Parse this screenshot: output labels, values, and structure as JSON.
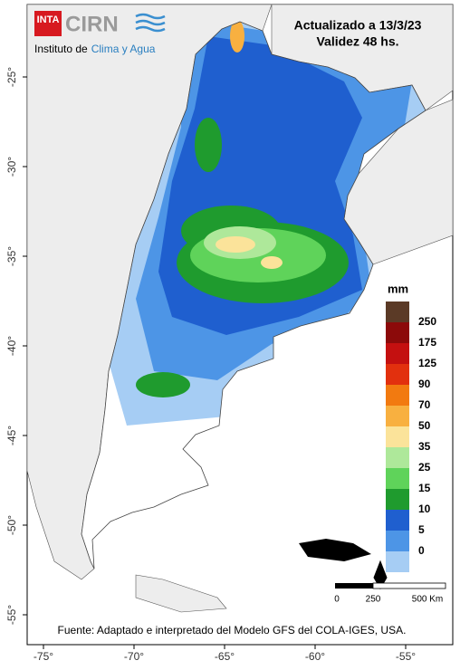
{
  "logo": {
    "badge": "INTA",
    "name": "CIRN",
    "subtitle_plain": "Instituto de",
    "subtitle_colored": "Clima y Agua"
  },
  "header": {
    "updated": "Actualizado a 13/3/23",
    "validity": "Validez 48 hs."
  },
  "legend": {
    "title": "mm",
    "labels": [
      250,
      175,
      125,
      90,
      70,
      50,
      35,
      25,
      15,
      10,
      5,
      0
    ],
    "colors": [
      "#5b3a26",
      "#8c0a0a",
      "#c41010",
      "#e2300e",
      "#f27a10",
      "#f8b040",
      "#fbe39a",
      "#aee89a",
      "#5fd35a",
      "#1f9b2e",
      "#1f5fcf",
      "#4d95e6",
      "#a6cdf4"
    ]
  },
  "scale_bar": {
    "labels": [
      "0",
      "250",
      "500 Km"
    ]
  },
  "footer": "Fuente: Adaptado e interpretado del Modelo GFS del COLA-IGES, USA.",
  "map": {
    "lat_ticks": [
      {
        "value": -25,
        "label": "-25°"
      },
      {
        "value": -30,
        "label": "-30°"
      },
      {
        "value": -35,
        "label": "-35°"
      },
      {
        "value": -40,
        "label": "-40°"
      },
      {
        "value": -45,
        "label": "-45°"
      },
      {
        "value": -50,
        "label": "-50°"
      },
      {
        "value": -55,
        "label": "-55°"
      }
    ],
    "lon_ticks": [
      {
        "value": -75,
        "label": "-75°"
      },
      {
        "value": -70,
        "label": "-70°"
      },
      {
        "value": -65,
        "label": "-65°"
      },
      {
        "value": -60,
        "label": "-60°"
      },
      {
        "value": -55,
        "label": "-55°"
      }
    ]
  }
}
